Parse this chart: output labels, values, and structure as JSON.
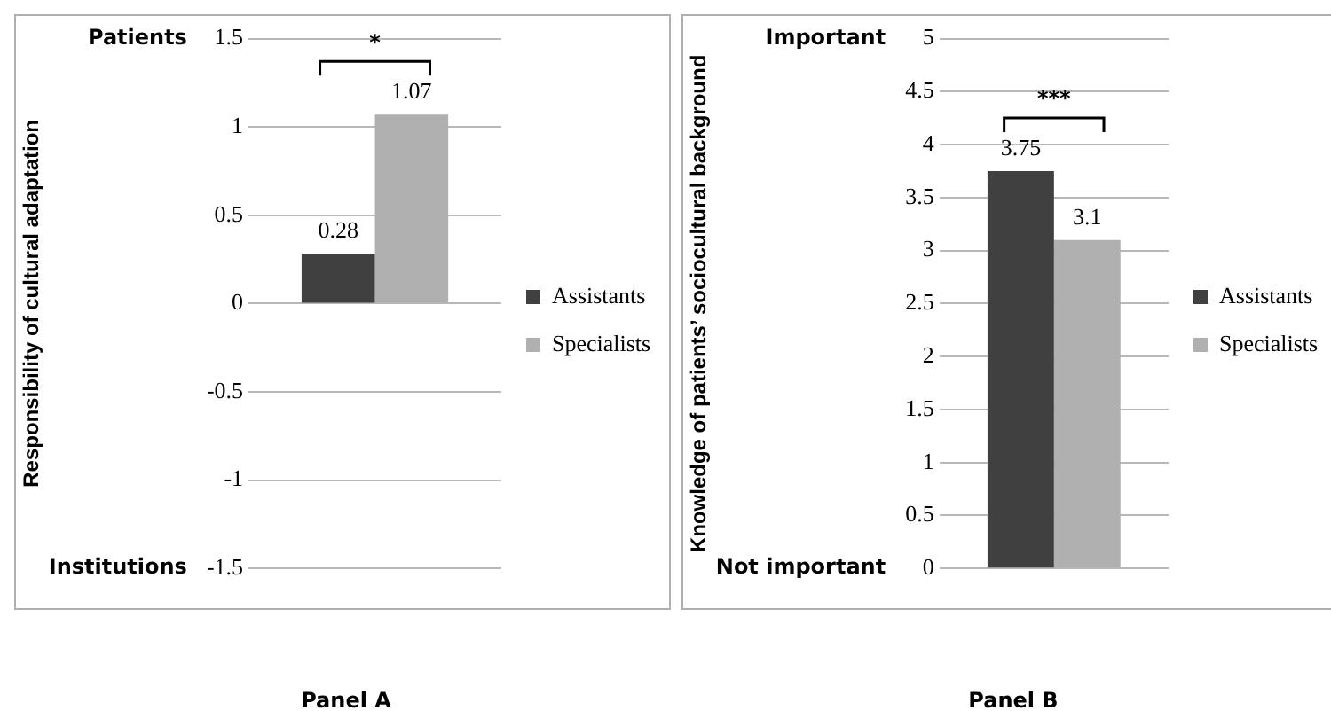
{
  "chart_data": [
    {
      "type": "bar",
      "ylabel": "Responsibility of cultural adaptation",
      "xlabel": "Panel A",
      "categories": [
        null
      ],
      "series": [
        {
          "name": "Assistants",
          "color": "#404040",
          "values": [
            0.28
          ]
        },
        {
          "name": "Specialists",
          "color": "#b0b0b0",
          "values": [
            1.07
          ]
        }
      ],
      "ylim": [
        -1.5,
        1.5
      ],
      "yticks": [
        -1.5,
        -1,
        -0.5,
        0,
        0.5,
        1,
        1.5
      ],
      "grid": "y",
      "legend": "right",
      "data_labels": true,
      "annotations": [
        "Patients",
        "Institutions",
        "*"
      ]
    },
    {
      "type": "bar",
      "ylabel": "Knowledge of patients’ sociocultural background",
      "xlabel": "Panel B",
      "categories": [
        null
      ],
      "series": [
        {
          "name": "Assistants",
          "color": "#404040",
          "values": [
            3.75
          ]
        },
        {
          "name": "Specialists",
          "color": "#b0b0b0",
          "values": [
            3.1
          ]
        }
      ],
      "ylim": [
        0,
        5
      ],
      "yticks": [
        0,
        0.5,
        1,
        1.5,
        2,
        2.5,
        3,
        3.5,
        4,
        4.5,
        5
      ],
      "grid": "y",
      "legend": "right",
      "data_labels": true,
      "annotations": [
        "Important",
        "Not important",
        "***"
      ]
    }
  ]
}
